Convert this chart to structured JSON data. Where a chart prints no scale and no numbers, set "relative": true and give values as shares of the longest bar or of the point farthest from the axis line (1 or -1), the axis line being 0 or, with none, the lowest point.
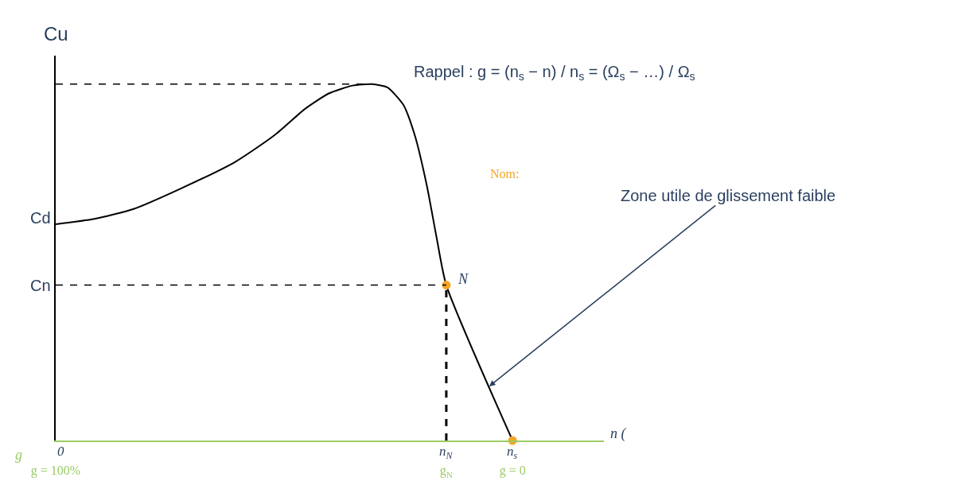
{
  "chart_data": {
    "type": "line",
    "relative": true,
    "ylabel": "Cu",
    "xlabel": "g",
    "xlim": [
      100,
      -20
    ],
    "xticks": [
      {
        "value": 100,
        "label": "g = 100%"
      },
      {
        "value": 14.5,
        "label": "g$_{N}$"
      },
      {
        "value": 0,
        "label": "g = 0"
      }
    ],
    "series": [
      {
        "color": "#000000",
        "x": [
          100,
          91.5,
          82.9,
          72.6,
          60.7,
          52.1,
          45.3,
          40.2,
          35,
          30.8,
          27.4,
          23.9,
          21.4,
          18.8,
          16.6,
          14.5,
          0
        ],
        "values": [
          0.607,
          0.622,
          0.65,
          0.707,
          0.782,
          0.857,
          0.932,
          0.974,
          0.996,
          1,
          0.991,
          0.942,
          0.857,
          0.718,
          0.568,
          0.436,
          0
        ]
      },
      {
        "type": "scatter",
        "color": "#f5a623",
        "marker": "circle",
        "x": [
          14.5,
          0
        ],
        "values": [
          0.436,
          0
        ]
      }
    ],
    "ref_lines": [
      {
        "axis": "y",
        "value": 1,
        "line_style": "dashed",
        "color": "#000000"
      },
      {
        "axis": "y",
        "value": 0.436,
        "label": "Cn",
        "line_style": "dashed",
        "color": "#000000"
      },
      {
        "axis": "x",
        "value": 14.5,
        "line_style": "dashed",
        "color": "#000000"
      }
    ],
    "annotations": [
      {
        "text": "Cd",
        "x": 100,
        "y": 0.607
      },
      {
        "text": "N",
        "x": 14.5,
        "y": 0.436
      },
      {
        "text": "Zone utile de glissement faible",
        "x": 5.1,
        "y": 0.152
      },
      "0",
      {
        "text": "n$_{N}$",
        "x": 14.5,
        "y": 0
      },
      {
        "text": "n$_{s}$",
        "x": 0,
        "y": 0
      },
      "n (",
      "Nom:",
      "Rappel : g = (n$_{s}$ − n) / n$_{s}$ = (Ω$_{s}$ − …) / Ω$_{s}$"
    ]
  }
}
